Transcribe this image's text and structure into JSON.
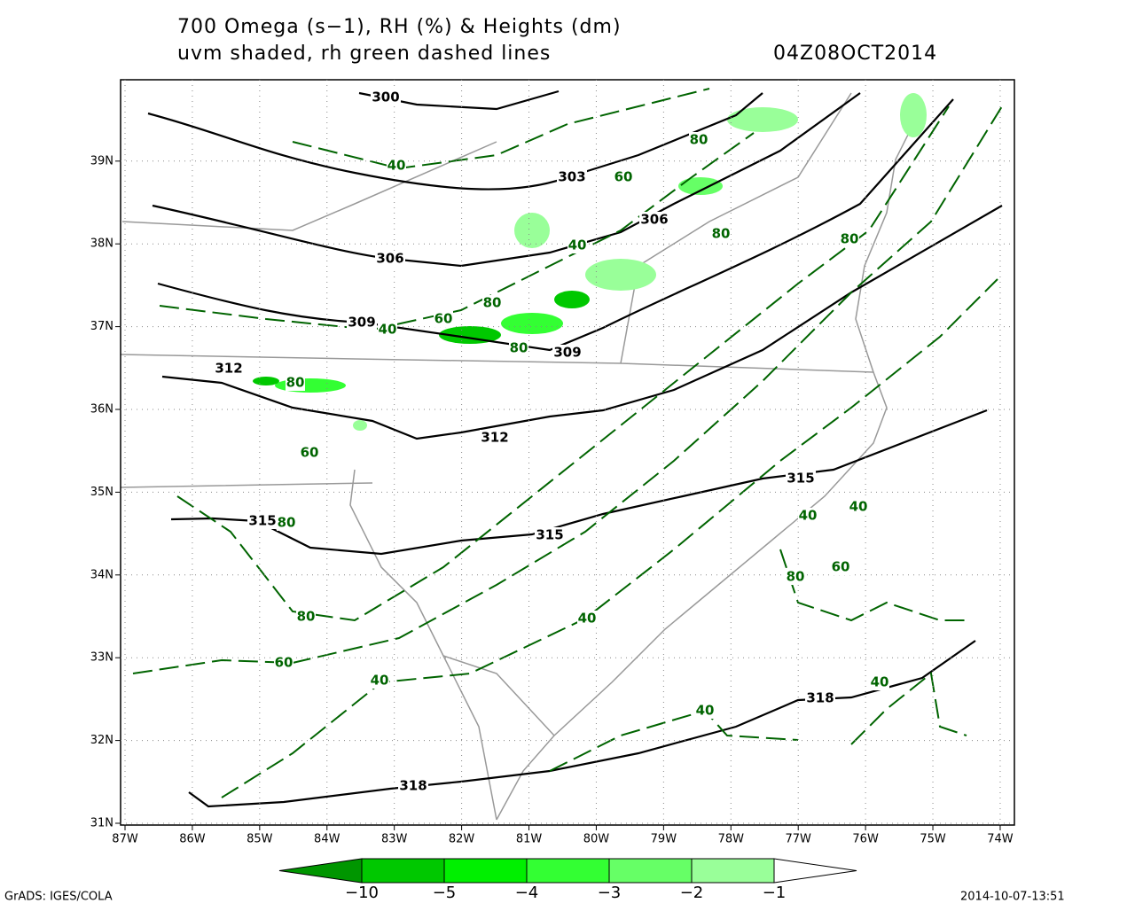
{
  "header": {
    "title_line1": "700 Omega (s−1), RH (%) & Heights (dm)",
    "title_line2": "uvm shaded, rh green dashed lines",
    "timestamp": "04Z08OCT2014"
  },
  "map": {
    "lon_labels": [
      "87W",
      "86W",
      "85W",
      "84W",
      "83W",
      "82W",
      "81W",
      "80W",
      "79W",
      "78W",
      "77W",
      "76W",
      "75W",
      "74W"
    ],
    "lat_labels": [
      "31N",
      "32N",
      "33N",
      "34N",
      "35N",
      "36N",
      "37N",
      "38N",
      "39N"
    ],
    "height_labels": [
      "300",
      "303",
      "306",
      "306",
      "309",
      "309",
      "312",
      "312",
      "315",
      "315",
      "315",
      "318",
      "318"
    ],
    "rh_labels": [
      "40",
      "60",
      "80",
      "80",
      "40",
      "80",
      "80",
      "60",
      "40",
      "80",
      "80",
      "60",
      "80",
      "40",
      "40",
      "60",
      "80",
      "40",
      "80",
      "60",
      "40",
      "40",
      "40"
    ]
  },
  "colorbar": {
    "labels": [
      "−10",
      "−5",
      "−4",
      "−3",
      "−2",
      "−1"
    ],
    "colors": [
      "#009600",
      "#00c800",
      "#00f000",
      "#33ff33",
      "#66ff66",
      "#99ff99",
      "#ffffff"
    ]
  },
  "footer": {
    "left": "GrADS: IGES/COLA",
    "right": "2014-10-07-13:51"
  }
}
